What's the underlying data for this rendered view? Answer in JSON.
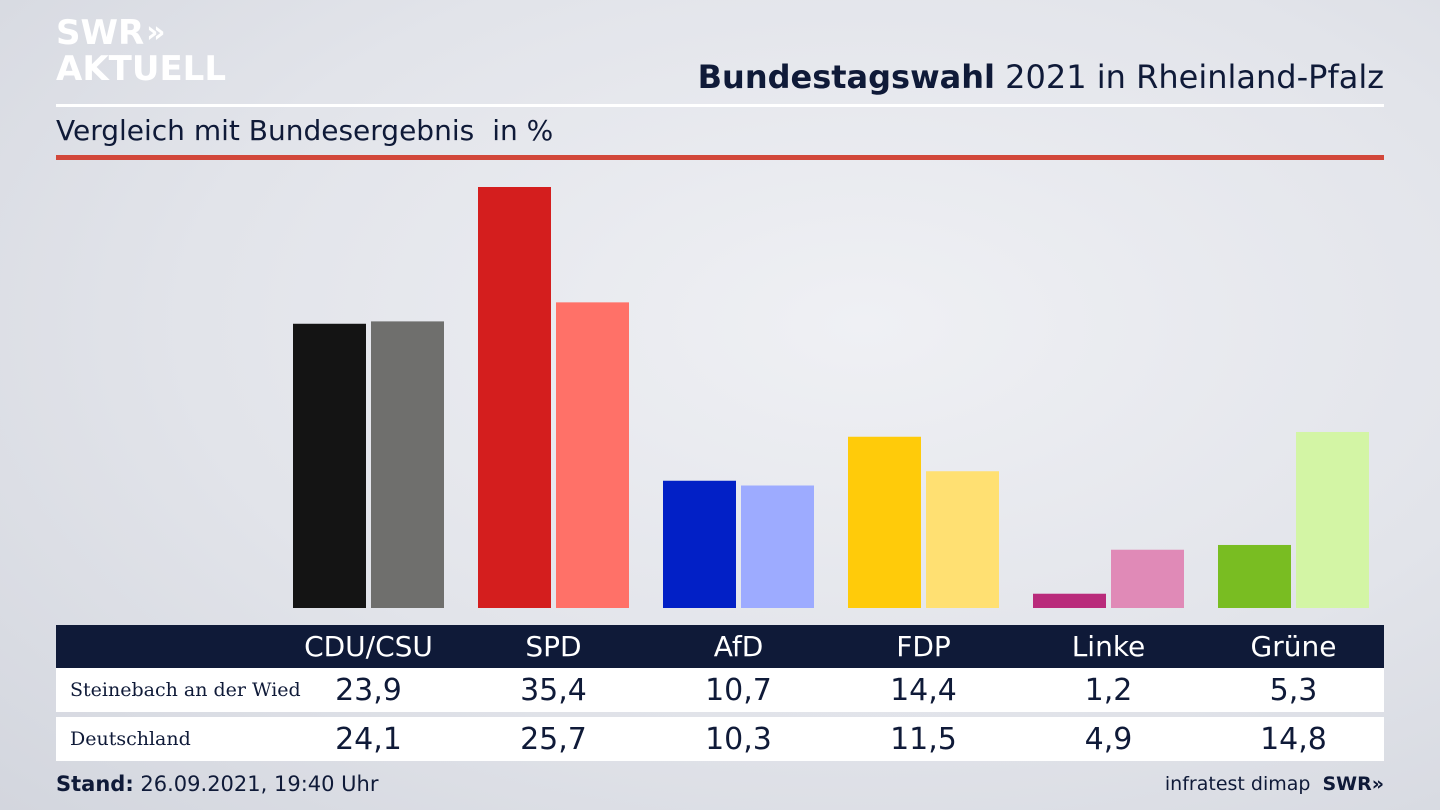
{
  "header": {
    "logo_line1": "SWR",
    "logo_chevrons": "»",
    "logo_line2": "AKTUELL",
    "headline_bold": "Bundestagswahl",
    "headline_rest": " 2021 in Rheinland-Pfalz",
    "subtitle": "Vergleich mit Bundesergebnis",
    "unit": "in %"
  },
  "colors": {
    "local": [
      "#141414",
      "#d41e1e",
      "#0220c6",
      "#ffcb0a",
      "#b92b7b",
      "#79bd22"
    ],
    "national": [
      "#6f6f6d",
      "#ff7168",
      "#9dabff",
      "#ffe072",
      "#e08ab7",
      "#d3f5a5"
    ],
    "accent_red": "#d2473a",
    "navy": "#0f1a38"
  },
  "chart_data": {
    "type": "bar",
    "categories": [
      "CDU/CSU",
      "SPD",
      "AfD",
      "FDP",
      "Linke",
      "Grüne"
    ],
    "series": [
      {
        "name": "Steinebach an der Wied",
        "values": [
          23.9,
          35.4,
          10.7,
          14.4,
          1.2,
          5.3
        ],
        "labels": [
          "23,9",
          "35,4",
          "10,7",
          "14,4",
          "1,2",
          "5,3"
        ]
      },
      {
        "name": "Deutschland",
        "values": [
          24.1,
          25.7,
          10.3,
          11.5,
          4.9,
          14.8
        ],
        "labels": [
          "24,1",
          "25,7",
          "10,3",
          "11,5",
          "4,9",
          "14,8"
        ]
      }
    ],
    "title": "Bundestagswahl 2021 in Rheinland-Pfalz",
    "subtitle": "Vergleich mit Bundesergebnis",
    "ylabel": "in %",
    "ylim": [
      0,
      35.4
    ],
    "grid": false,
    "legend": "table-below"
  },
  "footer": {
    "stand_label": "Stand:",
    "stand_value": " 26.09.2021, 19:40 Uhr",
    "source": "infratest dimap",
    "brand": "SWR»"
  }
}
